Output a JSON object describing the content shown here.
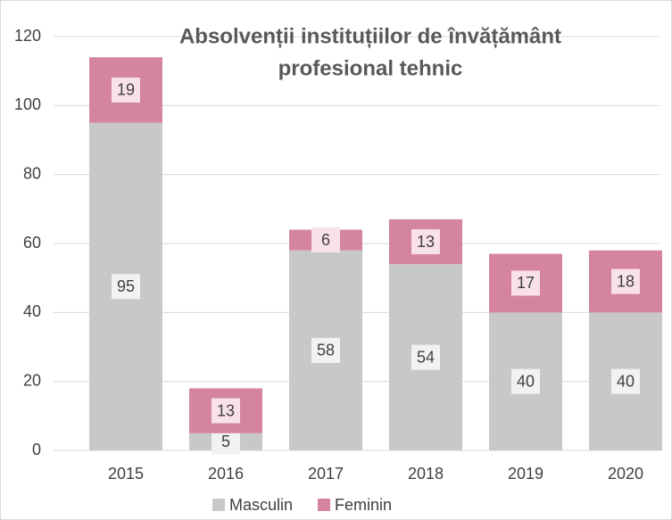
{
  "chart_data": {
    "type": "stacked_bar",
    "title": [
      "Absolvenții instituțiilor de învățământ",
      "profesional tehnic"
    ],
    "categories": [
      "2015",
      "2016",
      "2017",
      "2018",
      "2019",
      "2020"
    ],
    "series": [
      {
        "name": "Masculin",
        "color": "#c8c8c8",
        "values": [
          95,
          5,
          58,
          54,
          40,
          40
        ]
      },
      {
        "name": "Feminin",
        "color": "#d4849f",
        "values": [
          19,
          13,
          6,
          13,
          17,
          18
        ]
      }
    ],
    "ylim": [
      0,
      120
    ],
    "yticks": [
      0,
      20,
      40,
      60,
      80,
      100,
      120
    ],
    "grid": true,
    "legend": "bottom"
  }
}
